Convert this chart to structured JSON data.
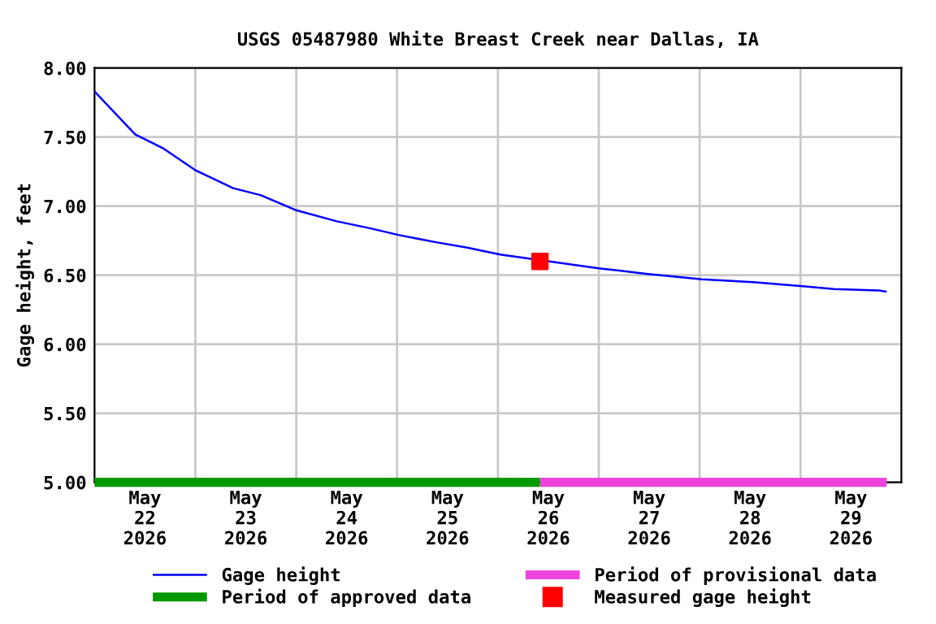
{
  "chart_data": {
    "type": "line",
    "title": "USGS 05487980 White Breast Creek near Dallas, IA",
    "ylabel": "Gage height, feet",
    "series": [
      {
        "name": "Gage height",
        "color": "#0000ff",
        "x": [
          "2026-05-22T00:00",
          "2026-05-22T09:40",
          "2026-05-22T16:15",
          "2026-05-23T00:00",
          "2026-05-23T09:00",
          "2026-05-23T15:30",
          "2026-05-24T00:00",
          "2026-05-24T09:40",
          "2026-05-24T17:30",
          "2026-05-25T00:30",
          "2026-05-25T09:00",
          "2026-05-25T16:40",
          "2026-05-26T00:30",
          "2026-05-27T00:00",
          "2026-05-27T11:15",
          "2026-05-28T00:30",
          "2026-05-28T12:45",
          "2026-05-29T00:30",
          "2026-05-29T08:00",
          "2026-05-29T18:30",
          "2026-05-29T20:30"
        ],
        "values": [
          7.83,
          7.52,
          7.42,
          7.26,
          7.13,
          7.08,
          6.97,
          6.89,
          6.84,
          6.79,
          6.74,
          6.7,
          6.65,
          6.55,
          6.51,
          6.47,
          6.45,
          6.42,
          6.4,
          6.39,
          6.38
        ]
      },
      {
        "name": "Period of provisional data",
        "color": "#ee44dd",
        "x": [
          "2026-05-26T10:00",
          "2026-05-29T20:30"
        ],
        "values": [
          5,
          5
        ]
      },
      {
        "name": "Period of approved data",
        "color": "#009900",
        "x": [
          "2026-05-22T00:00",
          "2026-05-26T10:00"
        ],
        "values": [
          5,
          5
        ]
      },
      {
        "name": "Measured gage height",
        "type": "scatter",
        "marker": "square",
        "color": "#ff0000",
        "x": [
          "2026-05-26T10:00"
        ],
        "values": [
          6.6
        ]
      }
    ],
    "xlim": [
      "2026-05-22T00:00",
      "2026-05-30T00:00"
    ],
    "xticks": [
      {
        "value": "2026-05-22T12:00",
        "label": "May\n22\n2026"
      },
      {
        "value": "2026-05-23T12:00",
        "label": "May\n23\n2026"
      },
      {
        "value": "2026-05-24T12:00",
        "label": "May\n24\n2026"
      },
      {
        "value": "2026-05-25T12:00",
        "label": "May\n25\n2026"
      },
      {
        "value": "2026-05-26T12:00",
        "label": "May\n26\n2026"
      },
      {
        "value": "2026-05-27T12:00",
        "label": "May\n27\n2026"
      },
      {
        "value": "2026-05-28T12:00",
        "label": "May\n28\n2026"
      },
      {
        "value": "2026-05-29T12:00",
        "label": "May\n29\n2026"
      },
      {
        "value": "2026-05-23T00:00",
        "label": null
      },
      {
        "value": "2026-05-24T00:00",
        "label": null
      },
      {
        "value": "2026-05-25T00:00",
        "label": null
      },
      {
        "value": "2026-05-26T00:00",
        "label": null
      },
      {
        "value": "2026-05-27T00:00",
        "label": null
      },
      {
        "value": "2026-05-28T00:00",
        "label": null
      },
      {
        "value": "2026-05-29T00:00",
        "label": null
      }
    ],
    "ylim": [
      5,
      8
    ],
    "yticks": [
      {
        "value": 5,
        "label": "5.00"
      },
      {
        "value": 5.5,
        "label": "5.50"
      },
      {
        "value": 6,
        "label": "6.00"
      },
      {
        "value": 6.5,
        "label": "6.50"
      },
      {
        "value": 7,
        "label": "7.00"
      },
      {
        "value": 7.5,
        "label": "7.50"
      },
      {
        "value": 8,
        "label": "8.00"
      }
    ],
    "grid": true,
    "legend": "bottom",
    "marker": "none",
    "line_style": "solid"
  }
}
